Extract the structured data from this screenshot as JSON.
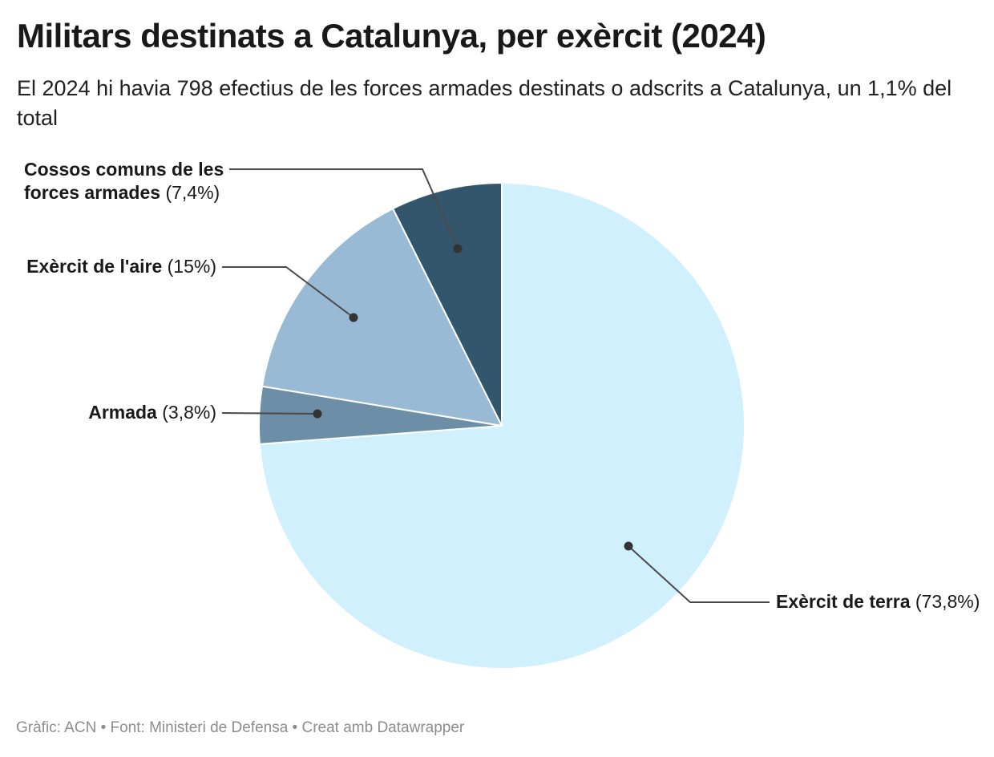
{
  "header": {
    "title": "Militars destinats a Catalunya, per exèrcit (2024)",
    "subtitle": "El 2024 hi havia 798 efectius de les forces armades destinats o adscrits a Catalunya, un 1,1% del total"
  },
  "footer": {
    "text": "Gràfic: ACN • Font: Ministeri de Defensa • Creat amb Datawrapper"
  },
  "chart_data": {
    "type": "pie",
    "title": "Militars destinats a Catalunya, per exèrcit (2024)",
    "subtitle": "El 2024 hi havia 798 efectius de les forces armades destinats o adscrits a Catalunya, un 1,1% del total",
    "source": "Gràfic: ACN • Font: Ministeri de Defensa • Creat amb Datawrapper",
    "unit": "%",
    "total_pct": 100,
    "start_angle_deg": 0,
    "direction": "clockwise",
    "legend": "direct labels with leader lines",
    "slices": [
      {
        "label": "Exèrcit de terra",
        "value": 73.8,
        "pct_text": "(73,8%)",
        "color": "#cff0fc"
      },
      {
        "label": "Armada",
        "value": 3.8,
        "pct_text": "(3,8%)",
        "color": "#6c8fa7"
      },
      {
        "label": "Exèrcit de l'aire",
        "value": 15,
        "pct_text": "(15%)",
        "color": "#98bad4"
      },
      {
        "label": "Cossos comuns de les forces armades",
        "value": 7.4,
        "pct_text": "(7,4%)",
        "color": "#33566c"
      }
    ],
    "style": {
      "slice_stroke": "#ffffff",
      "leader_line_color": "#4a4a4a",
      "leader_dot_color": "#333333"
    }
  }
}
